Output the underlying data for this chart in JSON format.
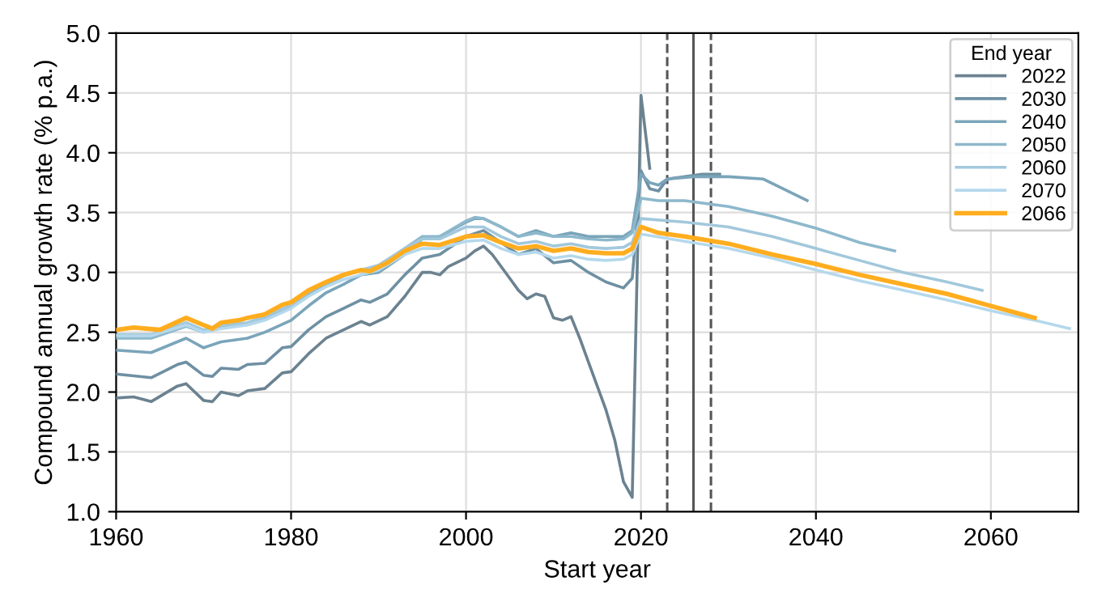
{
  "chart_data": {
    "type": "line",
    "xlabel": "Start year",
    "ylabel": "Compound annual growth rate (% p.a.)",
    "legend_title": "End year",
    "legend": "top right",
    "grid": true,
    "marker": "none",
    "line_style": "solid",
    "xlim": [
      1960,
      2070
    ],
    "xticks": [
      1960,
      1980,
      2000,
      2020,
      2040,
      2060
    ],
    "ylim": [
      1.0,
      5.0
    ],
    "yticks": [
      {
        "value": 1,
        "label": "1.0"
      },
      1.5,
      {
        "value": 2,
        "label": "2.0"
      },
      2.5,
      {
        "value": 3,
        "label": "3.0"
      },
      3.5,
      {
        "value": 4,
        "label": "4.0"
      },
      4.5,
      {
        "value": 5,
        "label": "5.0"
      }
    ],
    "series": [
      {
        "name": "2022",
        "color": "#6b8290",
        "x": [
          1960,
          1962,
          1964,
          1967,
          1968,
          1970,
          1971,
          1972,
          1974,
          1975,
          1977,
          1979,
          1980,
          1982,
          1984,
          1986,
          1988,
          1989,
          1991,
          1993,
          1995,
          1996,
          1997,
          1998,
          2000,
          2001,
          2002,
          2003,
          2004,
          2005,
          2006,
          2007,
          2008,
          2009,
          2010,
          2011,
          2012,
          2013,
          2014,
          2015,
          2016,
          2017,
          2018,
          2019,
          2020,
          2021
        ],
        "values": [
          1.95,
          1.96,
          1.92,
          2.05,
          2.07,
          1.93,
          1.92,
          2.0,
          1.97,
          2.01,
          2.03,
          2.16,
          2.17,
          2.32,
          2.45,
          2.52,
          2.59,
          2.56,
          2.63,
          2.8,
          3.0,
          3.0,
          2.98,
          3.05,
          3.12,
          3.18,
          3.22,
          3.15,
          3.05,
          2.95,
          2.85,
          2.78,
          2.82,
          2.8,
          2.62,
          2.6,
          2.63,
          2.45,
          2.25,
          2.05,
          1.85,
          1.6,
          1.25,
          1.12,
          4.48,
          3.87
        ]
      },
      {
        "name": "2030",
        "color": "#6e90a3",
        "x": [
          1960,
          1964,
          1967,
          1968,
          1970,
          1971,
          1972,
          1974,
          1975,
          1977,
          1979,
          1980,
          1982,
          1984,
          1986,
          1988,
          1989,
          1991,
          1993,
          1995,
          1997,
          2000,
          2002,
          2004,
          2006,
          2008,
          2010,
          2012,
          2014,
          2016,
          2018,
          2019,
          2020,
          2021,
          2022,
          2023,
          2025,
          2027,
          2029
        ],
        "values": [
          2.15,
          2.12,
          2.23,
          2.25,
          2.14,
          2.13,
          2.2,
          2.19,
          2.23,
          2.24,
          2.37,
          2.38,
          2.52,
          2.63,
          2.7,
          2.77,
          2.75,
          2.82,
          2.98,
          3.12,
          3.15,
          3.3,
          3.35,
          3.25,
          3.15,
          3.2,
          3.08,
          3.1,
          3.0,
          2.92,
          2.87,
          2.95,
          3.85,
          3.7,
          3.68,
          3.78,
          3.8,
          3.82,
          3.82
        ]
      },
      {
        "name": "2040",
        "color": "#7aa5ba",
        "x": [
          1960,
          1964,
          1968,
          1970,
          1972,
          1975,
          1977,
          1980,
          1982,
          1984,
          1986,
          1988,
          1990,
          1993,
          1995,
          1997,
          2000,
          2001,
          2002,
          2004,
          2006,
          2008,
          2010,
          2012,
          2014,
          2016,
          2018,
          2019,
          2020,
          2021,
          2022,
          2023,
          2026,
          2030,
          2034,
          2039
        ],
        "values": [
          2.35,
          2.33,
          2.45,
          2.37,
          2.42,
          2.45,
          2.5,
          2.6,
          2.72,
          2.83,
          2.9,
          2.98,
          3.0,
          3.15,
          3.28,
          3.3,
          3.42,
          3.45,
          3.45,
          3.38,
          3.3,
          3.35,
          3.3,
          3.33,
          3.3,
          3.3,
          3.3,
          3.35,
          3.82,
          3.75,
          3.73,
          3.78,
          3.8,
          3.8,
          3.78,
          3.6
        ]
      },
      {
        "name": "2050",
        "color": "#8db8cc",
        "x": [
          1960,
          1964,
          1968,
          1970,
          1972,
          1975,
          1977,
          1980,
          1982,
          1984,
          1986,
          1988,
          1990,
          1993,
          1995,
          1997,
          2000,
          2001,
          2002,
          2004,
          2006,
          2008,
          2010,
          2012,
          2014,
          2016,
          2018,
          2019,
          2020,
          2022,
          2025,
          2030,
          2035,
          2040,
          2045,
          2049
        ],
        "values": [
          2.45,
          2.45,
          2.55,
          2.5,
          2.55,
          2.57,
          2.62,
          2.72,
          2.82,
          2.9,
          2.97,
          3.02,
          3.05,
          3.2,
          3.3,
          3.3,
          3.43,
          3.46,
          3.45,
          3.38,
          3.3,
          3.33,
          3.3,
          3.3,
          3.28,
          3.27,
          3.28,
          3.33,
          3.62,
          3.6,
          3.6,
          3.55,
          3.47,
          3.37,
          3.25,
          3.18
        ]
      },
      {
        "name": "2060",
        "color": "#a2c8dc",
        "x": [
          1960,
          1964,
          1968,
          1970,
          1972,
          1975,
          1977,
          1980,
          1982,
          1984,
          1986,
          1988,
          1990,
          1993,
          1995,
          1997,
          2000,
          2002,
          2004,
          2006,
          2008,
          2010,
          2012,
          2014,
          2016,
          2018,
          2019,
          2020,
          2025,
          2030,
          2035,
          2040,
          2045,
          2050,
          2055,
          2059
        ],
        "values": [
          2.48,
          2.48,
          2.58,
          2.52,
          2.56,
          2.58,
          2.63,
          2.73,
          2.84,
          2.92,
          2.98,
          3.02,
          3.06,
          3.2,
          3.28,
          3.28,
          3.38,
          3.38,
          3.3,
          3.24,
          3.26,
          3.22,
          3.24,
          3.21,
          3.2,
          3.21,
          3.25,
          3.45,
          3.42,
          3.38,
          3.3,
          3.2,
          3.1,
          3.0,
          2.92,
          2.85
        ]
      },
      {
        "name": "2070",
        "color": "#b5d8ec",
        "x": [
          1960,
          1964,
          1968,
          1970,
          1972,
          1975,
          1977,
          1980,
          1982,
          1984,
          1986,
          1988,
          1990,
          1993,
          1995,
          1997,
          2000,
          2002,
          2004,
          2006,
          2008,
          2010,
          2012,
          2014,
          2016,
          2018,
          2019,
          2020,
          2025,
          2030,
          2035,
          2040,
          2045,
          2050,
          2055,
          2060,
          2065,
          2069
        ],
        "values": [
          2.47,
          2.47,
          2.56,
          2.5,
          2.53,
          2.56,
          2.6,
          2.7,
          2.8,
          2.88,
          2.94,
          2.98,
          3.02,
          3.15,
          3.2,
          3.2,
          3.26,
          3.27,
          3.2,
          3.15,
          3.17,
          3.12,
          3.14,
          3.11,
          3.1,
          3.11,
          3.15,
          3.32,
          3.26,
          3.2,
          3.12,
          3.02,
          2.93,
          2.85,
          2.77,
          2.68,
          2.6,
          2.53
        ]
      },
      {
        "name": "2066",
        "color": "#ffad1f",
        "x": [
          1960,
          1962,
          1965,
          1968,
          1970,
          1971,
          1972,
          1974,
          1975,
          1977,
          1979,
          1980,
          1982,
          1984,
          1986,
          1988,
          1989,
          1991,
          1993,
          1995,
          1997,
          2000,
          2002,
          2004,
          2006,
          2008,
          2010,
          2012,
          2014,
          2016,
          2018,
          2019,
          2020,
          2022,
          2025,
          2030,
          2035,
          2040,
          2045,
          2050,
          2055,
          2060,
          2065
        ],
        "values": [
          2.52,
          2.54,
          2.52,
          2.62,
          2.56,
          2.53,
          2.58,
          2.6,
          2.62,
          2.65,
          2.73,
          2.75,
          2.85,
          2.92,
          2.98,
          3.02,
          3.01,
          3.08,
          3.18,
          3.24,
          3.23,
          3.3,
          3.31,
          3.25,
          3.2,
          3.22,
          3.18,
          3.2,
          3.17,
          3.16,
          3.16,
          3.2,
          3.38,
          3.33,
          3.3,
          3.24,
          3.15,
          3.07,
          2.98,
          2.9,
          2.82,
          2.72,
          2.62
        ]
      }
    ],
    "ref_lines": [
      {
        "axis": "x",
        "value": 2023,
        "label": null,
        "color": "#555555",
        "line_style": "dashed"
      },
      {
        "axis": "x",
        "value": 2026,
        "label": null,
        "color": "#555555",
        "line_style": "solid"
      },
      {
        "axis": "x",
        "value": 2028,
        "label": null,
        "color": "#555555",
        "line_style": "dashed"
      }
    ]
  }
}
